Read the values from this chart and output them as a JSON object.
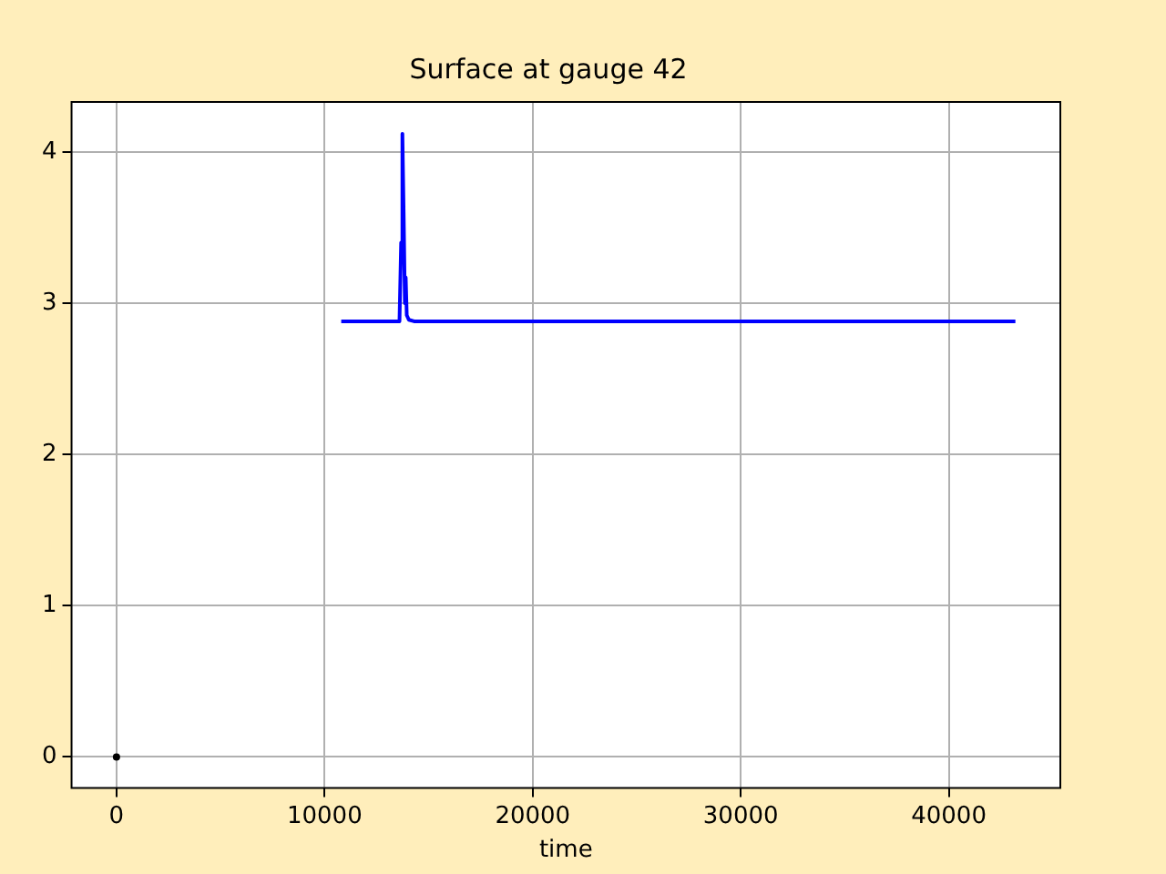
{
  "chart_data": {
    "type": "line",
    "title": "Surface at gauge 42",
    "xlabel": "time",
    "xlim": [
      -2160,
      45360
    ],
    "xticks": [
      0,
      10000,
      20000,
      30000,
      40000
    ],
    "ylim": [
      -0.206,
      4.33
    ],
    "yticks": [
      0,
      1,
      2,
      3,
      4
    ],
    "grid": true,
    "legend": false,
    "series": [
      {
        "color": "#0000ff",
        "marker": "none",
        "x": [
          10800,
          13600,
          13680,
          13740,
          13800,
          13860,
          13900,
          13950,
          14050,
          14300,
          43200
        ],
        "values": [
          2.88,
          2.88,
          3.4,
          4.12,
          3.6,
          3.0,
          3.17,
          2.92,
          2.89,
          2.88,
          2.88
        ]
      },
      {
        "type": "scatter",
        "color": "#000000",
        "marker": "circle",
        "x": [
          0
        ],
        "values": [
          0
        ]
      }
    ]
  }
}
